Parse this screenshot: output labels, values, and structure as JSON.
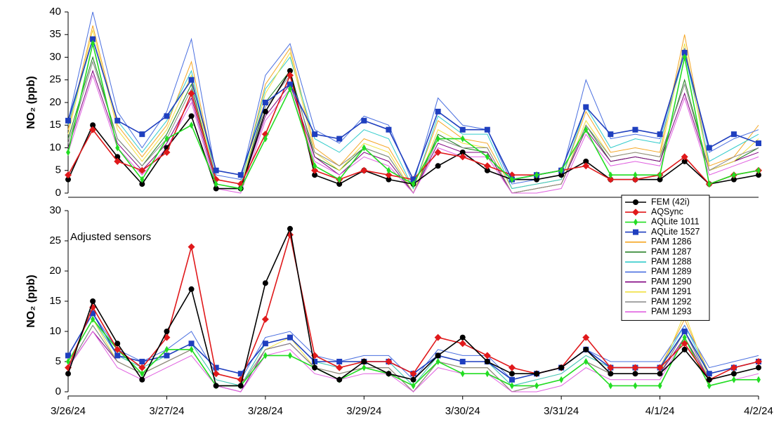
{
  "chart_data": [
    {
      "type": "line",
      "ylabel": "NO₂ (ppb)",
      "xlim": [
        0,
        7
      ],
      "ylim": [
        0,
        40
      ],
      "yticks": [
        0,
        5,
        10,
        15,
        20,
        25,
        30,
        35,
        40
      ],
      "x": [
        0,
        0.25,
        0.5,
        0.75,
        1,
        1.25,
        1.5,
        1.75,
        2,
        2.25,
        2.5,
        2.75,
        3,
        3.25,
        3.5,
        3.75,
        4,
        4.25,
        4.5,
        4.75,
        5,
        5.25,
        5.5,
        5.75,
        6,
        6.25,
        6.5,
        6.75,
        7
      ],
      "series": [
        {
          "color": "#f5a623",
          "marker": "none",
          "values": [
            14,
            37,
            15,
            8,
            15,
            29,
            3,
            2,
            24,
            32,
            10,
            6,
            12,
            10,
            1,
            16,
            12,
            11,
            1,
            2,
            3,
            18,
            9,
            10,
            9,
            35,
            6,
            8,
            15
          ]
        },
        {
          "color": "#1a7a1a",
          "marker": "none",
          "values": [
            12,
            30,
            12,
            6,
            13,
            24,
            2,
            1,
            20,
            27,
            8,
            5,
            10,
            8,
            0,
            13,
            10,
            9,
            0,
            1,
            2,
            15,
            7,
            8,
            7,
            25,
            5,
            7,
            10
          ]
        },
        {
          "color": "#33cccc",
          "marker": "none",
          "values": [
            15,
            34,
            16,
            9,
            16,
            27,
            3,
            2,
            23,
            30,
            12,
            9,
            14,
            12,
            1,
            17,
            13,
            13,
            1,
            2,
            3,
            19,
            10,
            12,
            11,
            31,
            7,
            10,
            13
          ]
        },
        {
          "color": "#4a6fe0",
          "marker": "none",
          "values": [
            16,
            40,
            18,
            10,
            18,
            34,
            4,
            3,
            26,
            33,
            14,
            11,
            17,
            15,
            2,
            21,
            15,
            14,
            2,
            3,
            4,
            25,
            12,
            13,
            12,
            32,
            9,
            12,
            14
          ]
        },
        {
          "color": "#800080",
          "marker": "none",
          "values": [
            10,
            27,
            11,
            5,
            11,
            21,
            2,
            1,
            17,
            24,
            8,
            4,
            9,
            7,
            0,
            11,
            9,
            9,
            0,
            1,
            2,
            14,
            7,
            8,
            7,
            22,
            5,
            7,
            9
          ]
        },
        {
          "color": "#f0e040",
          "marker": "none",
          "values": [
            13,
            36,
            14,
            7,
            14,
            26,
            2,
            1,
            22,
            31,
            9,
            5,
            11,
            9,
            0,
            14,
            11,
            10,
            0,
            1,
            2,
            16,
            8,
            9,
            8,
            33,
            5,
            7,
            12
          ]
        },
        {
          "color": "#888888",
          "marker": "none",
          "values": [
            11,
            29,
            12,
            6,
            12,
            23,
            2,
            1,
            19,
            26,
            9,
            6,
            10,
            8,
            0,
            12,
            10,
            10,
            0,
            1,
            2,
            15,
            8,
            9,
            8,
            24,
            5,
            8,
            10
          ]
        },
        {
          "color": "#e060e0",
          "marker": "none",
          "values": [
            9,
            26,
            10,
            4,
            10,
            20,
            1,
            0,
            16,
            23,
            7,
            4,
            8,
            6,
            0,
            10,
            8,
            8,
            0,
            0,
            1,
            13,
            6,
            7,
            6,
            21,
            4,
            6,
            8
          ]
        },
        {
          "color": "#22dd22",
          "marker": "thin",
          "values": [
            9,
            33,
            10,
            3,
            12,
            15,
            2,
            1,
            12,
            23,
            6,
            3,
            10,
            5,
            2,
            12,
            12,
            8,
            3,
            4,
            5,
            14,
            4,
            4,
            4,
            30,
            2,
            4,
            5
          ]
        },
        {
          "color": "#1f3fbf",
          "marker": "square",
          "values": [
            16,
            34,
            16,
            13,
            17,
            25,
            5,
            4,
            20,
            24,
            13,
            12,
            16,
            14,
            3,
            18,
            14,
            14,
            3,
            4,
            5,
            19,
            13,
            14,
            13,
            31,
            10,
            13,
            11
          ]
        },
        {
          "color": "#e0191b",
          "marker": "diamond",
          "values": [
            4,
            14,
            7,
            5,
            9,
            22,
            3,
            2,
            13,
            26,
            5,
            3,
            5,
            4,
            3,
            9,
            8,
            6,
            4,
            4,
            5,
            6,
            3,
            3,
            4,
            8,
            2,
            4,
            5
          ]
        },
        {
          "color": "#000000",
          "marker": "circle",
          "values": [
            3,
            15,
            8,
            2,
            10,
            17,
            1,
            1,
            18,
            27,
            4,
            2,
            5,
            3,
            2,
            6,
            9,
            5,
            3,
            3,
            4,
            7,
            3,
            3,
            3,
            7,
            2,
            3,
            4
          ]
        }
      ]
    },
    {
      "type": "line",
      "ylabel": "NO₂ (ppb)",
      "annotation": "Adjusted sensors",
      "xlim": [
        0,
        7
      ],
      "ylim": [
        0,
        30
      ],
      "yticks": [
        0,
        5,
        10,
        15,
        20,
        25,
        30
      ],
      "xticks": [
        {
          "value": 0,
          "label": "3/26/24"
        },
        {
          "value": 1,
          "label": "3/27/24"
        },
        {
          "value": 2,
          "label": "3/28/24"
        },
        {
          "value": 3,
          "label": "3/29/24"
        },
        {
          "value": 4,
          "label": "3/30/24"
        },
        {
          "value": 5,
          "label": "3/31/24"
        },
        {
          "value": 6,
          "label": "4/1/24"
        },
        {
          "value": 7,
          "label": "4/2/24"
        }
      ],
      "legend": "upper right",
      "x": [
        0,
        0.25,
        0.5,
        0.75,
        1,
        1.25,
        1.5,
        1.75,
        2,
        2.25,
        2.5,
        2.75,
        3,
        3.25,
        3.5,
        3.75,
        4,
        4.25,
        4.5,
        4.75,
        5,
        5.25,
        5.5,
        5.75,
        6,
        6.25,
        6.5,
        6.75,
        7
      ],
      "series": [
        {
          "name": "FEM (42i)",
          "color": "#000000",
          "marker": "circle",
          "values": [
            3,
            15,
            8,
            2,
            10,
            17,
            1,
            1,
            18,
            27,
            4,
            2,
            5,
            3,
            2,
            6,
            9,
            5,
            3,
            3,
            4,
            7,
            3,
            3,
            3,
            7,
            2,
            3,
            4
          ]
        },
        {
          "name": "AQSync",
          "color": "#e0191b",
          "marker": "diamond",
          "values": [
            4,
            14,
            7,
            4,
            9,
            24,
            3,
            2,
            12,
            26,
            6,
            4,
            5,
            5,
            3,
            9,
            8,
            6,
            4,
            3,
            4,
            9,
            4,
            4,
            4,
            8,
            2,
            4,
            5
          ]
        },
        {
          "name": "AQLite 1011",
          "color": "#22dd22",
          "marker": "thin",
          "values": [
            5,
            12,
            7,
            3,
            7,
            7,
            1,
            1,
            6,
            6,
            4,
            2,
            4,
            3,
            1,
            5,
            3,
            3,
            1,
            1,
            2,
            5,
            1,
            1,
            1,
            9,
            1,
            2,
            2
          ]
        },
        {
          "name": "AQLite 1527",
          "color": "#1f3fbf",
          "marker": "square",
          "values": [
            6,
            13,
            6,
            5,
            6,
            8,
            4,
            3,
            8,
            9,
            5,
            5,
            5,
            5,
            3,
            6,
            5,
            5,
            2,
            3,
            4,
            7,
            4,
            4,
            4,
            10,
            3,
            4,
            5
          ]
        },
        {
          "name": "PAM 1286",
          "color": "#f5a623",
          "marker": "none",
          "values": [
            5,
            12,
            6,
            4,
            6,
            8,
            2,
            1,
            8,
            9,
            5,
            4,
            5,
            5,
            1,
            6,
            5,
            5,
            1,
            2,
            3,
            6,
            4,
            4,
            4,
            12,
            3,
            4,
            5
          ]
        },
        {
          "name": "PAM 1287",
          "color": "#1a7a1a",
          "marker": "none",
          "values": [
            4,
            11,
            5,
            3,
            5,
            7,
            1,
            1,
            7,
            8,
            4,
            3,
            4,
            4,
            0,
            5,
            4,
            4,
            0,
            1,
            2,
            5,
            3,
            3,
            3,
            10,
            2,
            3,
            4
          ]
        },
        {
          "name": "PAM 1288",
          "color": "#33cccc",
          "marker": "none",
          "values": [
            5,
            12,
            6,
            4,
            6,
            8,
            2,
            1,
            8,
            9,
            5,
            4,
            5,
            5,
            1,
            6,
            5,
            5,
            1,
            2,
            3,
            6,
            4,
            4,
            4,
            11,
            3,
            4,
            5
          ]
        },
        {
          "name": "PAM 1289",
          "color": "#4a6fe0",
          "marker": "none",
          "values": [
            6,
            13,
            7,
            5,
            7,
            10,
            3,
            2,
            9,
            10,
            6,
            5,
            6,
            6,
            2,
            7,
            6,
            6,
            2,
            3,
            4,
            7,
            5,
            5,
            5,
            11,
            4,
            5,
            6
          ]
        },
        {
          "name": "PAM 1290",
          "color": "#800080",
          "marker": "none",
          "values": [
            4,
            10,
            5,
            3,
            5,
            7,
            1,
            0,
            7,
            8,
            4,
            3,
            4,
            4,
            0,
            5,
            4,
            4,
            0,
            1,
            2,
            5,
            3,
            3,
            3,
            9,
            2,
            3,
            4
          ]
        },
        {
          "name": "PAM 1291",
          "color": "#f0e040",
          "marker": "none",
          "values": [
            5,
            12,
            5,
            3,
            5,
            7,
            1,
            1,
            7,
            9,
            4,
            3,
            4,
            4,
            0,
            5,
            4,
            4,
            0,
            1,
            2,
            5,
            3,
            3,
            3,
            13,
            2,
            3,
            4
          ]
        },
        {
          "name": "PAM 1292",
          "color": "#888888",
          "marker": "none",
          "values": [
            4,
            11,
            5,
            3,
            5,
            7,
            1,
            1,
            7,
            8,
            4,
            3,
            4,
            4,
            0,
            5,
            4,
            4,
            0,
            1,
            2,
            5,
            3,
            3,
            3,
            10,
            2,
            3,
            4
          ]
        },
        {
          "name": "PAM 1293",
          "color": "#e060e0",
          "marker": "none",
          "values": [
            4,
            10,
            4,
            2,
            4,
            6,
            1,
            0,
            6,
            7,
            3,
            2,
            3,
            3,
            0,
            4,
            3,
            3,
            0,
            0,
            1,
            4,
            2,
            2,
            2,
            9,
            1,
            2,
            3
          ]
        }
      ]
    }
  ]
}
